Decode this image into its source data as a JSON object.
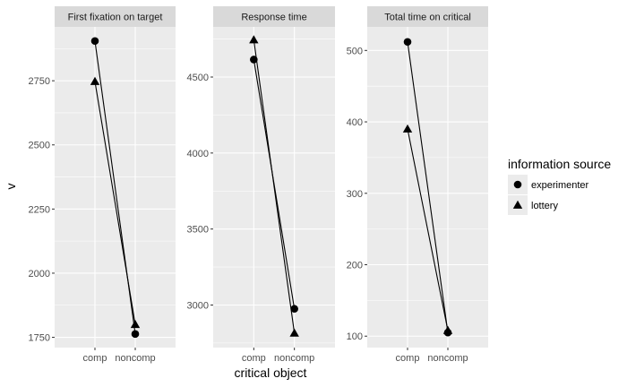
{
  "chart_data": {
    "type": "line",
    "xlabel": "critical object",
    "ylabel": "v",
    "categories": [
      "comp",
      "noncomp"
    ],
    "legend": {
      "title": "information source",
      "position": "right",
      "entries": [
        {
          "name": "experimenter",
          "shape": "circle"
        },
        {
          "name": "lottery",
          "shape": "triangle"
        }
      ]
    },
    "panels": [
      {
        "title": "First fixation on target",
        "ylim": [
          1710,
          2960
        ],
        "yticks": [
          1750,
          2000,
          2250,
          2500,
          2750
        ],
        "series": [
          {
            "name": "experimenter",
            "values": [
              2905,
              1763
            ]
          },
          {
            "name": "lottery",
            "values": [
              2747,
              1800
            ]
          }
        ]
      },
      {
        "title": "Response time",
        "ylim": [
          2720,
          4830
        ],
        "yticks": [
          3000,
          3500,
          4000,
          4500
        ],
        "series": [
          {
            "name": "experimenter",
            "values": [
              4615,
              2975
            ]
          },
          {
            "name": "lottery",
            "values": [
              4745,
              2815
            ]
          }
        ]
      },
      {
        "title": "Total time on critical",
        "ylim": [
          84,
          533
        ],
        "yticks": [
          100,
          200,
          300,
          400,
          500
        ],
        "series": [
          {
            "name": "experimenter",
            "values": [
              512,
              105
            ]
          },
          {
            "name": "lottery",
            "values": [
              390,
              108
            ]
          }
        ]
      }
    ],
    "colors": {
      "panel_background": "#ebebeb",
      "strip_background": "#d9d9d9",
      "grid": "#ffffff",
      "line": "#000000",
      "marker": "#000000"
    }
  }
}
